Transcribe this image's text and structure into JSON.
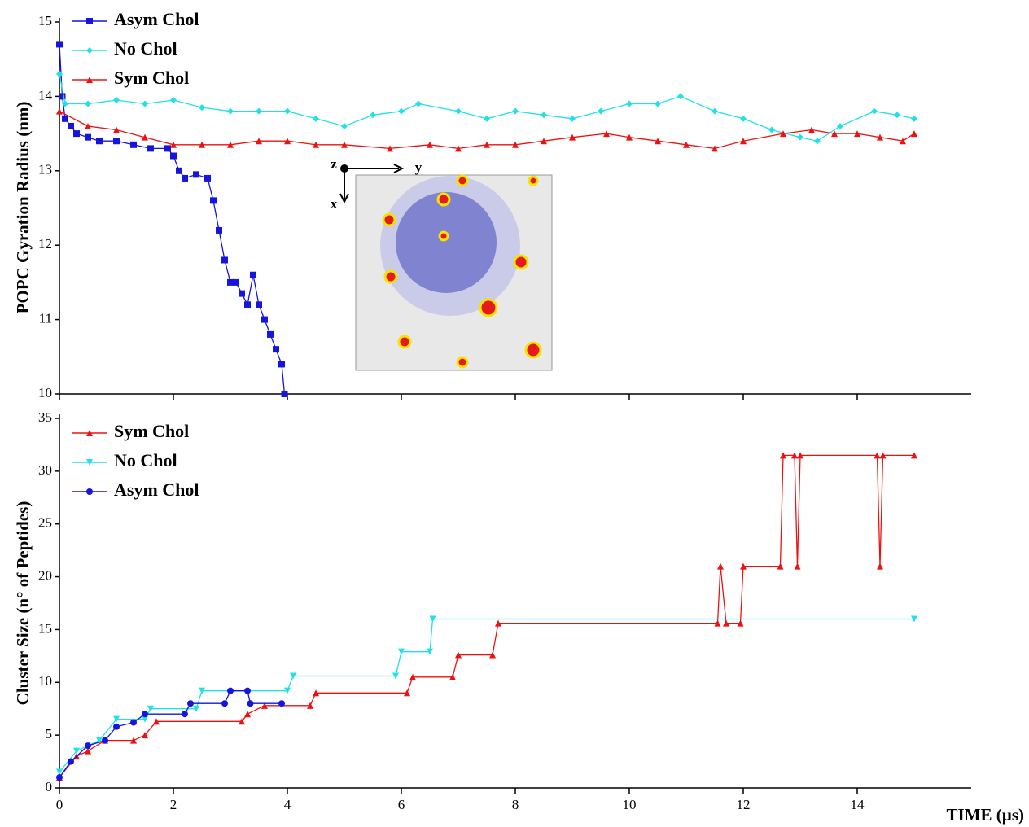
{
  "chart_data": [
    {
      "type": "line",
      "ylabel": "POPC Gyration Radius (nm)",
      "xlim": [
        0,
        16
      ],
      "xticks": [
        0,
        2,
        4,
        6,
        8,
        10,
        12,
        14
      ],
      "show_xtick_labels": false,
      "ylim": [
        10,
        15
      ],
      "yticks": [
        10,
        11,
        12,
        13,
        14,
        15
      ],
      "annotations": [
        "z",
        "y",
        "x"
      ],
      "series": [
        {
          "name": "Asym Chol",
          "color": "#1515dd",
          "marker": "square",
          "x": [
            0,
            0.05,
            0.1,
            0.2,
            0.3,
            0.5,
            0.7,
            1.0,
            1.3,
            1.6,
            1.9,
            2.0,
            2.1,
            2.2,
            2.4,
            2.6,
            2.7,
            2.8,
            2.9,
            3.0,
            3.1,
            3.2,
            3.3,
            3.4,
            3.5,
            3.6,
            3.7,
            3.8,
            3.9,
            3.95
          ],
          "values": [
            14.7,
            14.0,
            13.7,
            13.6,
            13.5,
            13.45,
            13.4,
            13.4,
            13.35,
            13.3,
            13.3,
            13.2,
            13.0,
            12.9,
            12.95,
            12.9,
            12.6,
            12.2,
            11.8,
            11.5,
            11.5,
            11.35,
            11.2,
            11.6,
            11.2,
            11.0,
            10.8,
            10.6,
            10.4,
            10.0
          ]
        },
        {
          "name": "No Chol",
          "color": "#22e0e8",
          "marker": "diamond",
          "x": [
            0,
            0.1,
            0.5,
            1,
            1.5,
            2,
            2.5,
            3,
            3.5,
            4,
            4.5,
            5,
            5.5,
            6,
            6.3,
            7,
            7.5,
            8,
            8.5,
            9,
            9.5,
            10,
            10.5,
            10.9,
            11.5,
            12,
            12.5,
            13,
            13.3,
            13.7,
            14.3,
            14.7,
            15
          ],
          "values": [
            14.3,
            13.9,
            13.9,
            13.95,
            13.9,
            13.95,
            13.85,
            13.8,
            13.8,
            13.8,
            13.7,
            13.6,
            13.75,
            13.8,
            13.9,
            13.8,
            13.7,
            13.8,
            13.75,
            13.7,
            13.8,
            13.9,
            13.9,
            14.0,
            13.8,
            13.7,
            13.55,
            13.45,
            13.4,
            13.6,
            13.8,
            13.75,
            13.7
          ]
        },
        {
          "name": "Sym Chol",
          "color": "#ee1111",
          "marker": "triangle",
          "x": [
            0,
            0.5,
            1,
            1.5,
            2,
            2.5,
            3,
            3.5,
            4,
            4.5,
            5,
            5.8,
            6.5,
            7,
            7.5,
            8,
            8.5,
            9,
            9.6,
            10,
            10.5,
            11,
            11.5,
            12,
            12.7,
            13.2,
            13.6,
            14,
            14.4,
            14.8,
            15
          ],
          "values": [
            13.8,
            13.6,
            13.55,
            13.45,
            13.35,
            13.35,
            13.35,
            13.4,
            13.4,
            13.35,
            13.35,
            13.3,
            13.35,
            13.3,
            13.35,
            13.35,
            13.4,
            13.45,
            13.5,
            13.45,
            13.4,
            13.35,
            13.3,
            13.4,
            13.5,
            13.55,
            13.5,
            13.5,
            13.45,
            13.4,
            13.5
          ]
        }
      ]
    },
    {
      "type": "line",
      "xlabel": "TIME (µs)",
      "ylabel": "Cluster Size (n° of Peptides)",
      "xlim": [
        0,
        16
      ],
      "xticks": [
        0,
        2,
        4,
        6,
        8,
        10,
        12,
        14
      ],
      "show_xtick_labels": true,
      "ylim": [
        0,
        35
      ],
      "yticks": [
        0,
        5,
        10,
        15,
        20,
        25,
        30,
        35
      ],
      "series": [
        {
          "name": "Sym Chol",
          "color": "#ee1111",
          "marker": "triangle",
          "x": [
            0,
            0.3,
            0.5,
            0.8,
            1.3,
            1.5,
            1.7,
            3.2,
            3.3,
            3.6,
            4.4,
            4.5,
            6.1,
            6.2,
            6.9,
            7.0,
            7.6,
            7.7,
            11.55,
            11.6,
            11.7,
            11.95,
            12,
            12.65,
            12.7,
            12.9,
            12.95,
            13.0,
            14.35,
            14.4,
            14.45,
            15
          ],
          "values": [
            1,
            3,
            3.5,
            4.5,
            4.5,
            5,
            6.3,
            6.3,
            7,
            7.8,
            7.8,
            9,
            9,
            10.5,
            10.5,
            12.6,
            12.6,
            15.6,
            15.6,
            21,
            15.6,
            15.6,
            21,
            21,
            31.5,
            31.5,
            21,
            31.5,
            31.5,
            21,
            31.5,
            31.5
          ]
        },
        {
          "name": "No Chol",
          "color": "#22e0e8",
          "marker": "triangle-down",
          "x": [
            0,
            0.3,
            0.7,
            1.0,
            1.5,
            1.6,
            2.4,
            2.5,
            4.0,
            4.1,
            5.9,
            6.0,
            6.5,
            6.55,
            15
          ],
          "values": [
            1.5,
            3.5,
            4.5,
            6.5,
            6.5,
            7.5,
            7.5,
            9.2,
            9.2,
            10.6,
            10.6,
            12.9,
            12.9,
            16,
            16
          ]
        },
        {
          "name": "Asym Chol",
          "color": "#1515dd",
          "marker": "circle",
          "x": [
            0,
            0.2,
            0.5,
            0.8,
            1.0,
            1.3,
            1.5,
            2.2,
            2.3,
            2.9,
            3.0,
            3.3,
            3.35,
            3.9
          ],
          "values": [
            1,
            2.5,
            4,
            4.5,
            5.8,
            6.2,
            7,
            7,
            8,
            8,
            9.2,
            9.2,
            8,
            8
          ]
        }
      ]
    }
  ]
}
